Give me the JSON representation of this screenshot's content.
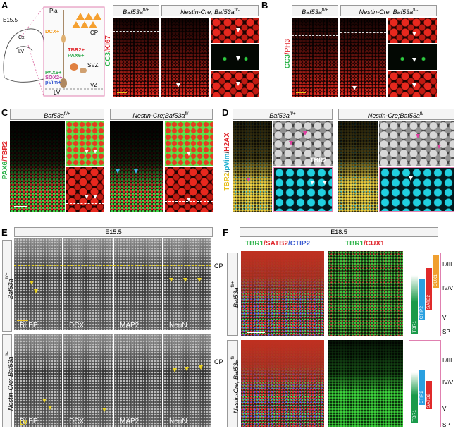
{
  "panel_a": {
    "letter": "A",
    "age": "E15.5",
    "cx": "Cx",
    "lv": "LV",
    "layers": {
      "pia": "Pia",
      "cp": "CP",
      "svz": "SVZ",
      "vz": "VZ",
      "lv": "LV"
    },
    "markers": [
      {
        "text": "DCX+",
        "color": "#f39c1e"
      },
      {
        "text": "TBR2+",
        "color": "#e0282e"
      },
      {
        "text": "PAX6+",
        "color": "#2aa84a"
      },
      {
        "text": "PAX6+",
        "color": "#2aa84a"
      },
      {
        "text": "SOX2+",
        "color": "#c03ca0"
      },
      {
        "text": "pVim+",
        "color": "#3a5bd0"
      }
    ],
    "control": {
      "text": "Baf53a",
      "sup": "fl/+"
    },
    "mutant": {
      "text": "Nestin-Cre; Baf53a",
      "sup": "fl/-"
    },
    "stain": [
      {
        "text": "CC3",
        "color": "#2db34a"
      },
      {
        "text": "/",
        "color": "#e0282e"
      },
      {
        "text": "KI67",
        "color": "#e0282e"
      }
    ]
  },
  "panel_b": {
    "letter": "B",
    "control": {
      "text": "Baf53a",
      "sup": "fl/+"
    },
    "mutant": {
      "text": "Nestin-Cre; Baf53a",
      "sup": "fl/-"
    },
    "stain": [
      {
        "text": "CC3",
        "color": "#2db34a"
      },
      {
        "text": "/",
        "color": "#e0282e"
      },
      {
        "text": "PH3",
        "color": "#e0282e"
      }
    ]
  },
  "panel_c": {
    "letter": "C",
    "control": {
      "text": "Baf53a",
      "sup": "fl/+"
    },
    "mutant": {
      "text": "Nestin-Cre;Baf53a",
      "sup": "fl/-"
    },
    "stain": [
      {
        "text": "PAX6",
        "color": "#2db34a"
      },
      {
        "text": "/",
        "color": "#e0282e"
      },
      {
        "text": "TBR2",
        "color": "#e0282e"
      }
    ]
  },
  "panel_d": {
    "letter": "D",
    "control": {
      "text": "Baf53a",
      "sup": "fl/+"
    },
    "mutant": {
      "text": "Nestin-Cre;Baf53a",
      "sup": "fl/-"
    },
    "stain": [
      {
        "text": "TBR2",
        "color": "#e8c020"
      },
      {
        "text": "/",
        "color": "#444444"
      },
      {
        "text": "pVim",
        "color": "#20b0d0"
      },
      {
        "text": "/",
        "color": "#444444"
      },
      {
        "text": "H2AX",
        "color": "#e0282e"
      }
    ],
    "inset": "TBR2"
  },
  "panel_e": {
    "letter": "E",
    "age": "E15.5",
    "columns": [
      "BLBP",
      "DCX",
      "MAP2",
      "NeuN"
    ],
    "cp": [
      "CP",
      "CP"
    ],
    "lv": "LV",
    "control": {
      "text": "Baf53a",
      "sup": "fl/+"
    },
    "mutant": {
      "text": "Nestin-Cre; Baf53a",
      "sup": "fl/-"
    }
  },
  "panel_f": {
    "letter": "F",
    "age": "E18.5",
    "stains": [
      [
        {
          "text": "TBR1",
          "color": "#2db34a"
        },
        {
          "text": "/",
          "color": "#e0282e"
        },
        {
          "text": "SATB2",
          "color": "#e0282e"
        },
        {
          "text": "/",
          "color": "#3a5bd0"
        },
        {
          "text": "CTIP2",
          "color": "#3a5bd0"
        }
      ],
      [
        {
          "text": "TBR1",
          "color": "#2db34a"
        },
        {
          "text": "/",
          "color": "#e0282e"
        },
        {
          "text": "CUX1",
          "color": "#e0282e"
        }
      ]
    ],
    "control": {
      "text": "Baf53a",
      "sup": "fl/+"
    },
    "mutant": {
      "text": "Nestin-Cre; Baf53a",
      "sup": "fl/-"
    },
    "layers_top": [
      "II/III",
      "IV/V",
      "VI",
      "SP"
    ],
    "layers_bottom": [
      "II/III",
      "IV/V",
      "VI",
      "SP"
    ],
    "bars_top": [
      {
        "text": "TBR1",
        "color": "#1a9a4a"
      },
      {
        "text": "CTIP2",
        "color": "#2aa0e0"
      },
      {
        "text": "SATB2",
        "color": "#e02a2a"
      },
      {
        "text": "CUX1",
        "color": "#f0a030"
      }
    ],
    "bars_bottom": [
      {
        "text": "TBR1",
        "color": "#1a9a4a"
      },
      {
        "text": "CTIP2",
        "color": "#2aa0e0"
      },
      {
        "text": "SATB2",
        "color": "#e02a2a"
      }
    ]
  }
}
